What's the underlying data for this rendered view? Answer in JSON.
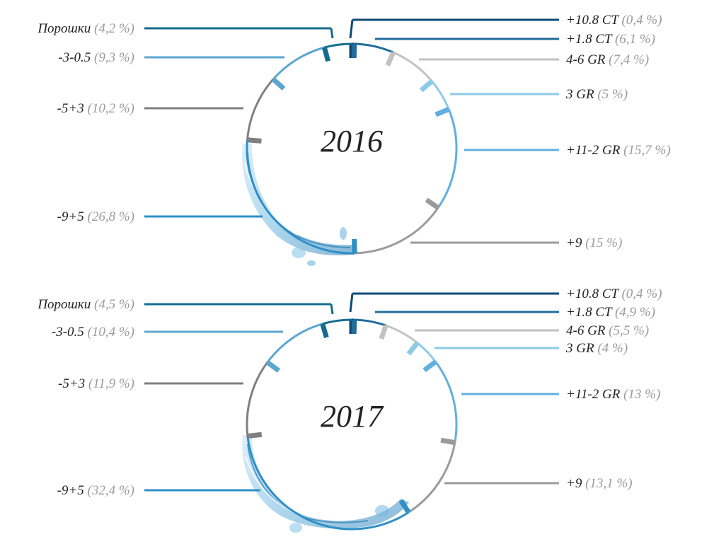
{
  "chart_data": [
    {
      "type": "pie",
      "title": "2016",
      "segments": [
        {
          "label": "+10.8 CT",
          "value_text": "(0,4 %)",
          "value": 0.4,
          "color": "#0c4a78"
        },
        {
          "label": "+1.8 CT",
          "value_text": "(6,1 %)",
          "value": 6.1,
          "color": "#1f6e9c"
        },
        {
          "label": "4-6 GR",
          "value_text": "(7,4 %)",
          "value": 7.4,
          "color": "#c2c2c2"
        },
        {
          "label": "3 GR",
          "value_text": "(5 %)",
          "value": 5.0,
          "color": "#8ccbe8"
        },
        {
          "label": "+11-2 GR",
          "value_text": "(15,7 %)",
          "value": 15.7,
          "color": "#5fb0de"
        },
        {
          "label": "+9",
          "value_text": "(15 %)",
          "value": 15.0,
          "color": "#9b9b9b"
        },
        {
          "label": "-9+5",
          "value_text": "(26,8 %)",
          "value": 26.8,
          "color": "#2f8fc8"
        },
        {
          "label": "-5+3",
          "value_text": "(10,2 %)",
          "value": 10.2,
          "color": "#808080"
        },
        {
          "label": "-3-0.5",
          "value_text": "(9,3 %)",
          "value": 9.3,
          "color": "#5ba6cf"
        },
        {
          "label": "Порошки",
          "value_text": "(4,2 %)",
          "value": 4.2,
          "color": "#146d8f"
        }
      ]
    },
    {
      "type": "pie",
      "title": "2017",
      "segments": [
        {
          "label": "+10.8 CT",
          "value_text": "(0,4 %)",
          "value": 0.4,
          "color": "#0c4a78"
        },
        {
          "label": "+1.8 CT",
          "value_text": "(4,9 %)",
          "value": 4.9,
          "color": "#1f6e9c"
        },
        {
          "label": "4-6 GR",
          "value_text": "(5,5 %)",
          "value": 5.5,
          "color": "#c2c2c2"
        },
        {
          "label": "3 GR",
          "value_text": "(4 %)",
          "value": 4.0,
          "color": "#8ccbe8"
        },
        {
          "label": "+11-2 GR",
          "value_text": "(13 %)",
          "value": 13.0,
          "color": "#5fb0de"
        },
        {
          "label": "+9",
          "value_text": "(13,1 %)",
          "value": 13.1,
          "color": "#9b9b9b"
        },
        {
          "label": "-9+5",
          "value_text": "(32,4 %)",
          "value": 32.4,
          "color": "#2f8fc8"
        },
        {
          "label": "-5+3",
          "value_text": "(11,9 %)",
          "value": 11.9,
          "color": "#808080"
        },
        {
          "label": "-3-0.5",
          "value_text": "(10,4 %)",
          "value": 10.4,
          "color": "#5ba6cf"
        },
        {
          "label": "Порошки",
          "value_text": "(4,5 %)",
          "value": 4.5,
          "color": "#146d8f"
        }
      ]
    }
  ],
  "styles": {
    "label_color": "#222222",
    "value_color": "#9a9a9a",
    "water_color": "#4a9fd0"
  }
}
